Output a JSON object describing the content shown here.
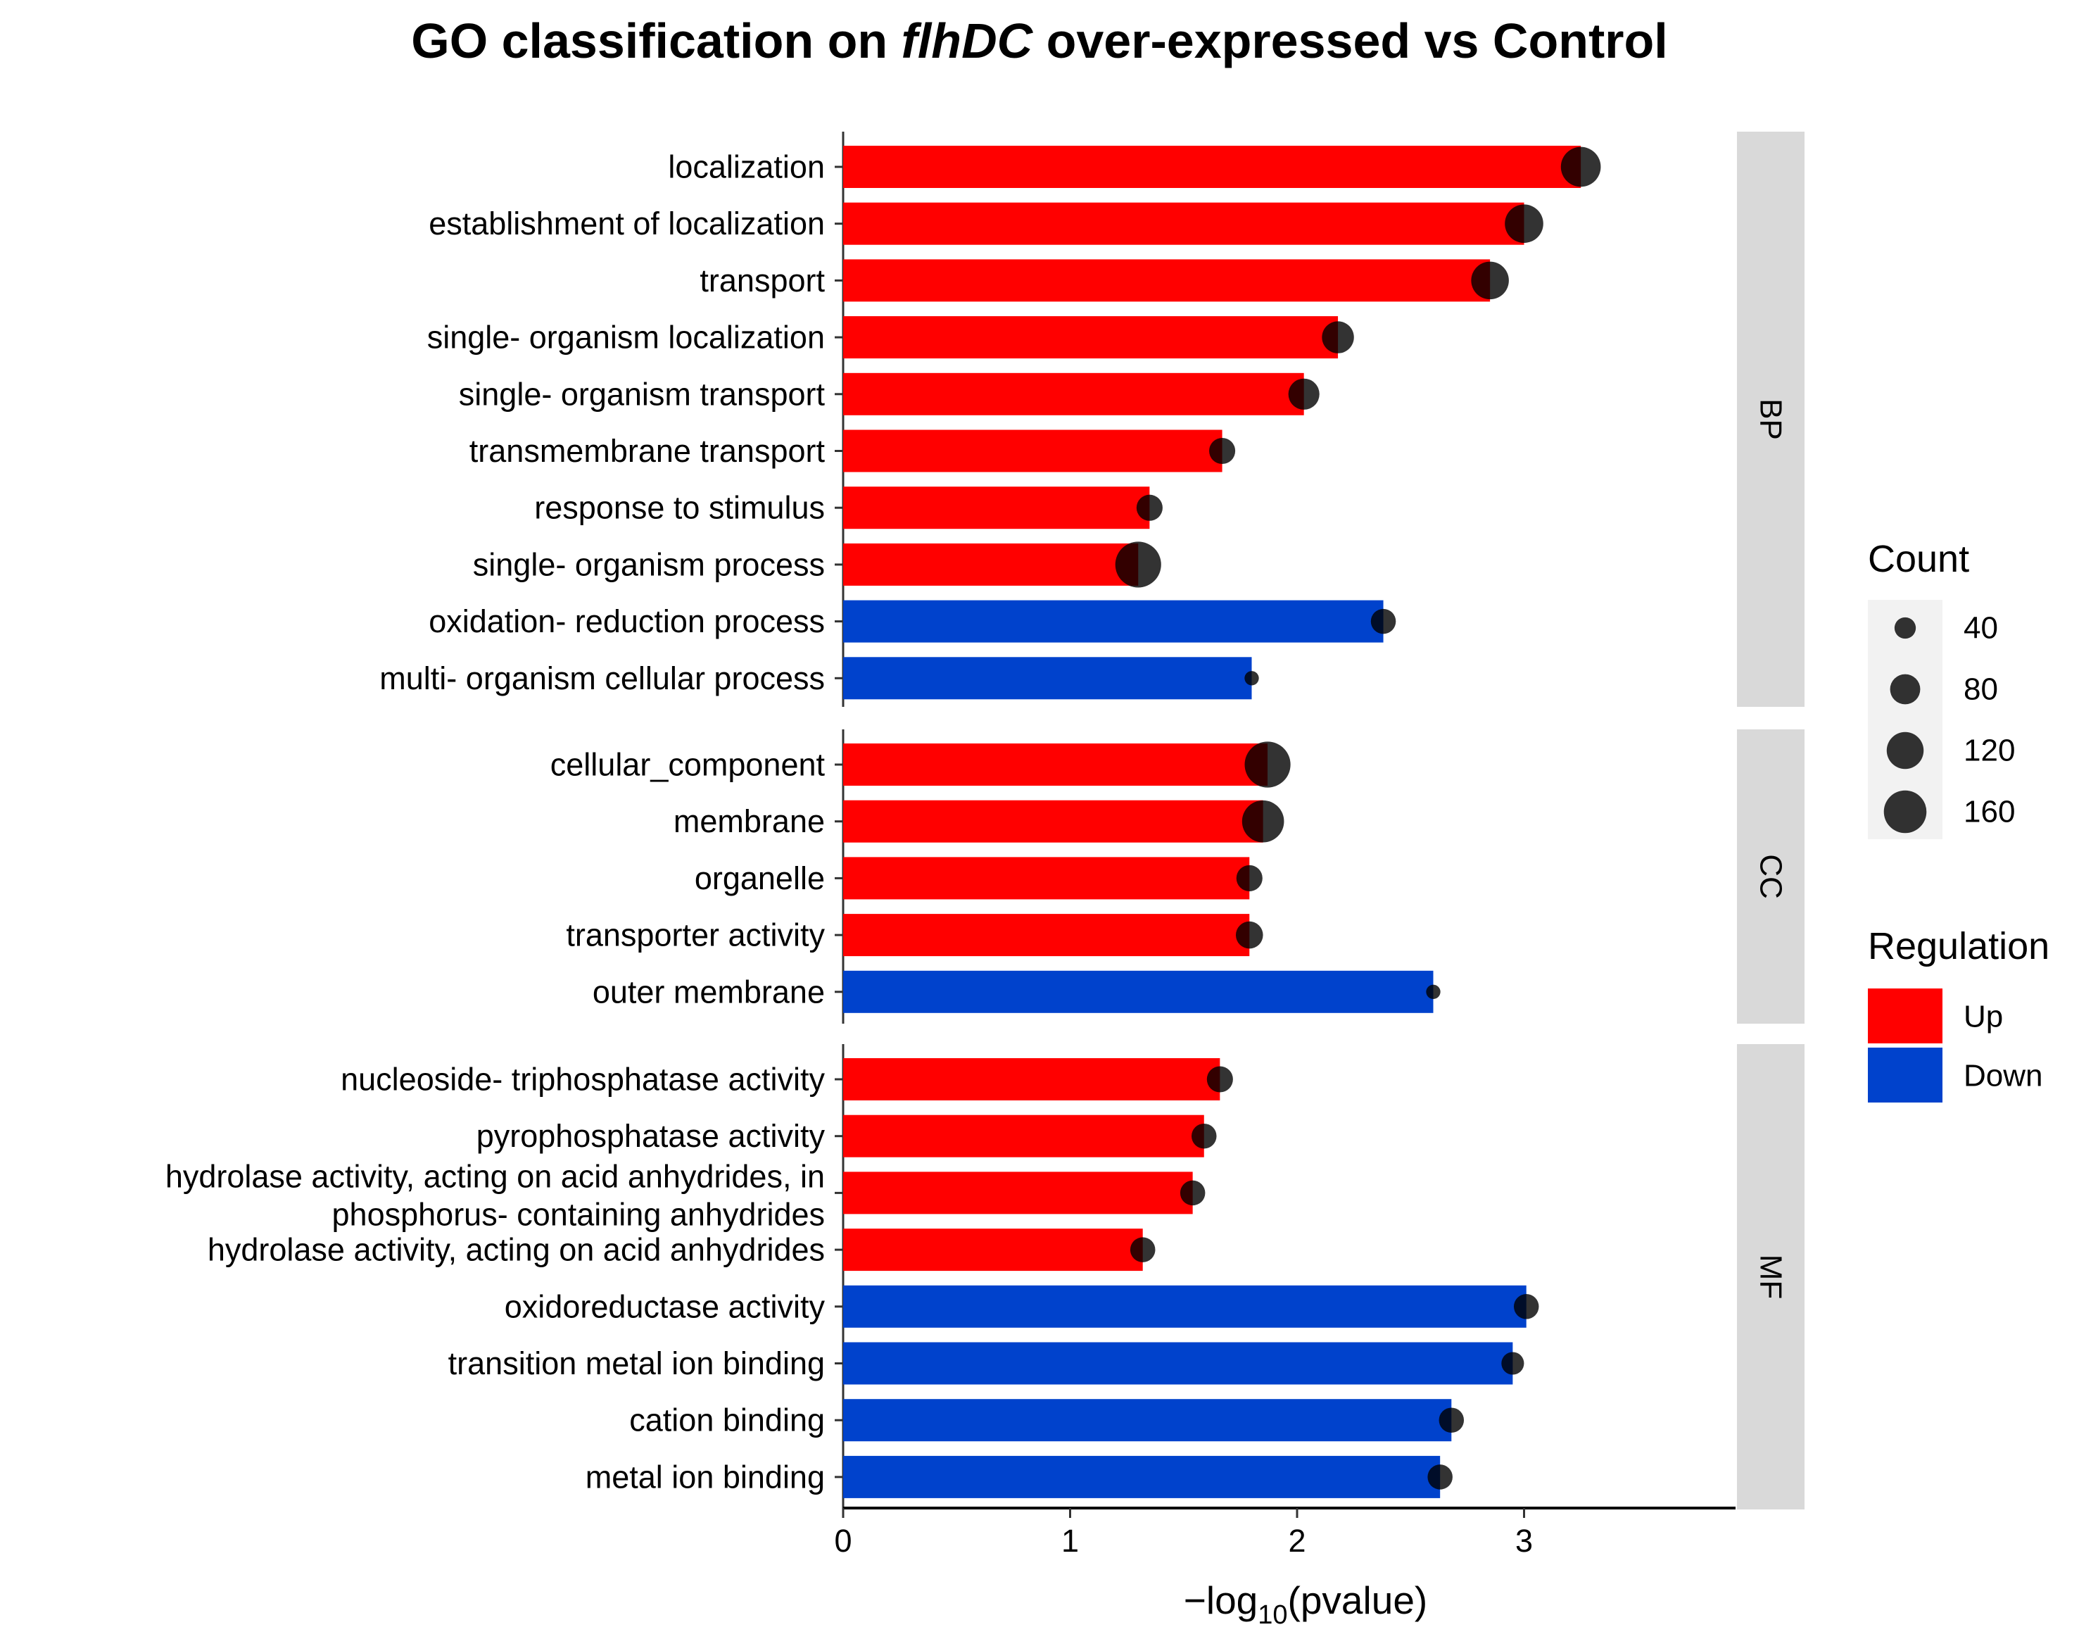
{
  "chart_data": {
    "type": "bar",
    "title": {
      "pre": "GO classification on ",
      "italic": "flhDC",
      "post": " over-expressed vs Control"
    },
    "xlabel": {
      "pre": "−log",
      "sub": "10",
      "post": "(pvalue)"
    },
    "xlim": [
      0,
      3.92
    ],
    "xticks": [
      0,
      1,
      2,
      3
    ],
    "colors": {
      "Up": "#ff0000",
      "Down": "#0042cc",
      "dot": "#000000",
      "strip": "#d9d9d9"
    },
    "facets": [
      {
        "name": "BP",
        "rows": [
          {
            "term": "localization",
            "value": 3.25,
            "reg": "Up",
            "count": 140
          },
          {
            "term": "establishment of localization",
            "value": 3.0,
            "reg": "Up",
            "count": 130
          },
          {
            "term": "transport",
            "value": 2.85,
            "reg": "Up",
            "count": 125
          },
          {
            "term": "single- organism localization",
            "value": 2.18,
            "reg": "Up",
            "count": 90
          },
          {
            "term": "single- organism transport",
            "value": 2.03,
            "reg": "Up",
            "count": 85
          },
          {
            "term": "transmembrane transport",
            "value": 1.67,
            "reg": "Up",
            "count": 60
          },
          {
            "term": "response to stimulus",
            "value": 1.35,
            "reg": "Up",
            "count": 60
          },
          {
            "term": "single- organism process",
            "value": 1.3,
            "reg": "Up",
            "count": 185
          },
          {
            "term": "oxidation- reduction process",
            "value": 2.38,
            "reg": "Down",
            "count": 55
          },
          {
            "term": "multi- organism cellular process",
            "value": 1.8,
            "reg": "Down",
            "count": 18
          }
        ]
      },
      {
        "name": "CC",
        "rows": [
          {
            "term": "cellular_component",
            "value": 1.87,
            "reg": "Up",
            "count": 185
          },
          {
            "term": "membrane",
            "value": 1.85,
            "reg": "Up",
            "count": 155
          },
          {
            "term": "organelle",
            "value": 1.79,
            "reg": "Up",
            "count": 60
          },
          {
            "term": "transporter activity",
            "value": 1.79,
            "reg": "Up",
            "count": 65
          },
          {
            "term": "outer membrane",
            "value": 2.6,
            "reg": "Down",
            "count": 18
          }
        ]
      },
      {
        "name": "MF",
        "rows": [
          {
            "term": "nucleoside- triphosphatase activity",
            "value": 1.66,
            "reg": "Up",
            "count": 60
          },
          {
            "term": "pyrophosphatase activity",
            "value": 1.59,
            "reg": "Up",
            "count": 55
          },
          {
            "term": [
              "hydrolase activity, acting on acid anhydrides, in",
              "phosphorus- containing anhydrides"
            ],
            "value": 1.54,
            "reg": "Up",
            "count": 55
          },
          {
            "term": "hydrolase activity, acting on acid anhydrides",
            "value": 1.32,
            "reg": "Up",
            "count": 55
          },
          {
            "term": "oxidoreductase activity",
            "value": 3.01,
            "reg": "Down",
            "count": 55
          },
          {
            "term": "transition metal ion binding",
            "value": 2.95,
            "reg": "Down",
            "count": 45
          },
          {
            "term": "cation binding",
            "value": 2.68,
            "reg": "Down",
            "count": 55
          },
          {
            "term": "metal ion binding",
            "value": 2.63,
            "reg": "Down",
            "count": 55
          }
        ]
      }
    ],
    "legend_count": {
      "title": "Count",
      "values": [
        40,
        80,
        120,
        160
      ],
      "placement": "right"
    },
    "legend_reg": {
      "title": "Regulation",
      "items": [
        "Up",
        "Down"
      ],
      "placement": "right"
    }
  }
}
